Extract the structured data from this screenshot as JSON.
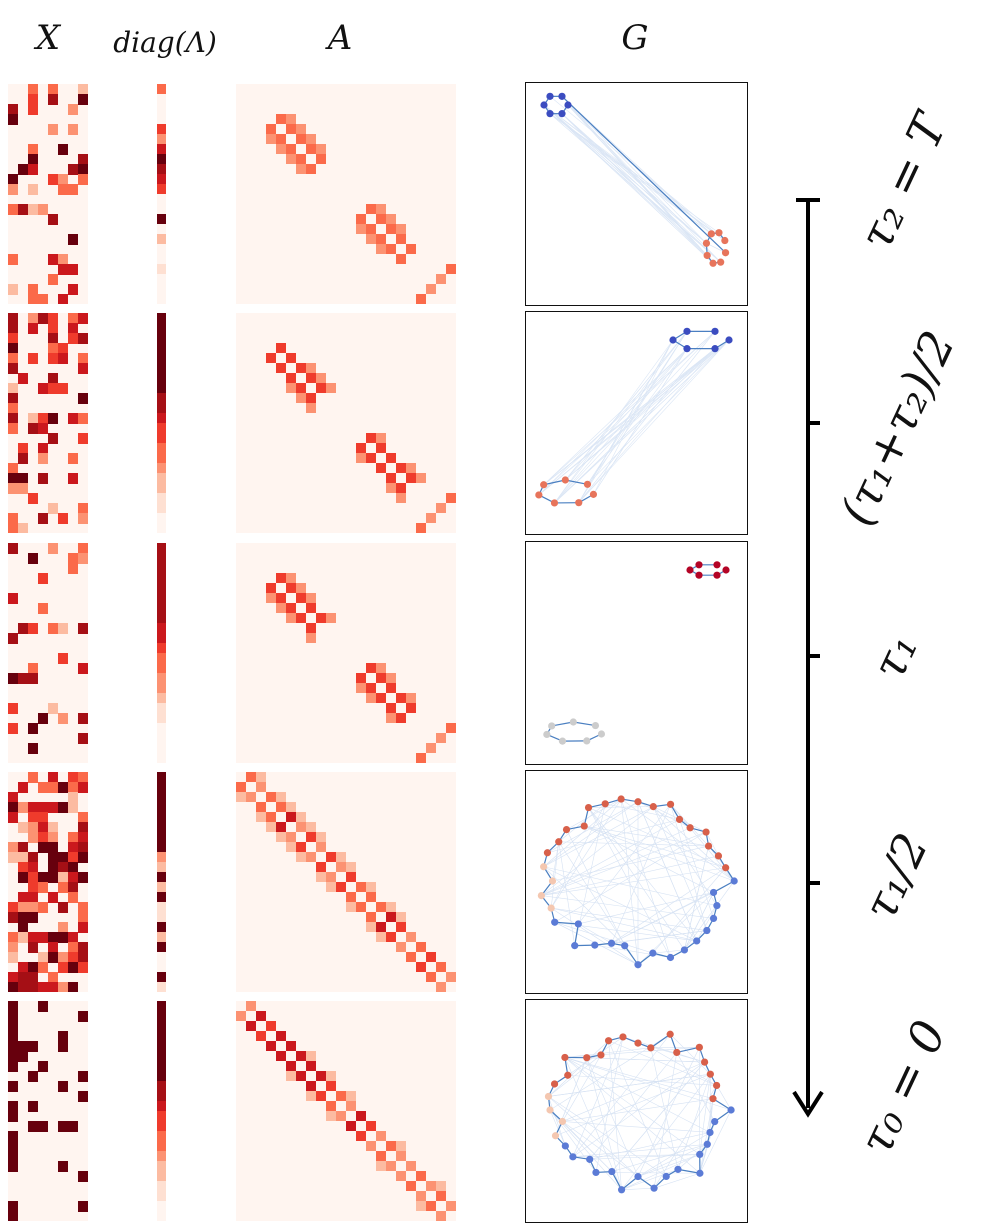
{
  "columns": {
    "x_title": "X",
    "diag_title": "diag(Λ)",
    "a_title": "A",
    "g_title": "G"
  },
  "time_labels": [
    {
      "id": "t2",
      "text": "τ₂ = T"
    },
    {
      "id": "tmid",
      "text": "(τ₁+τ₂)/2"
    },
    {
      "id": "t1",
      "text": "τ₁"
    },
    {
      "id": "thalf",
      "text": "τ₁/2"
    },
    {
      "id": "t0",
      "text": "τ₀ = 0"
    }
  ],
  "colors": {
    "heat_low": "#fff5f0",
    "heat_high": "#67000d",
    "arrow": "#000000",
    "graph_blue": "#3b4cc0",
    "graph_red": "#b40426"
  }
}
